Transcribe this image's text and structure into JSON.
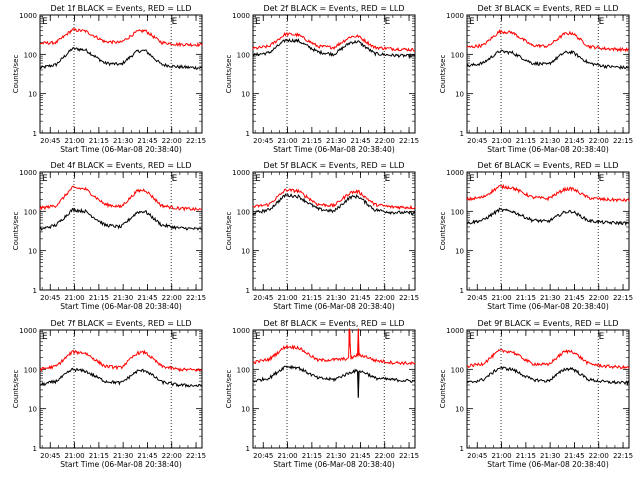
{
  "figure": {
    "start_time_label": "Start Time (06-Mar-08 20:38:40)",
    "ylabel": "Counts/sec",
    "x_ticks": [
      "20:45",
      "21:00",
      "21:15",
      "21:30",
      "21:45",
      "22:00",
      "22:15"
    ],
    "x_tick_minutes": [
      6.33,
      21.33,
      36.33,
      51.33,
      66.33,
      81.33,
      96.33
    ],
    "y_ticks": [
      "1",
      "10",
      "100",
      "1000"
    ],
    "y_tick_values": [
      1,
      10,
      100,
      1000
    ],
    "corner_marks": [
      "E",
      "E"
    ],
    "colors": {
      "events": "#000000",
      "lld": "#ff0000",
      "axes": "#000000",
      "vline": "#000000"
    }
  },
  "chart_data": [
    {
      "type": "line",
      "title": "Det 1f BLACK = Events, RED = LLD",
      "xlabel": "Start Time (06-Mar-08 20:38:40)",
      "ylabel": "Counts/sec",
      "xlim_minutes": [
        0,
        100
      ],
      "ylim": [
        1,
        1000
      ],
      "y_scale": "log",
      "vlines_minutes": [
        21,
        81
      ],
      "series": [
        {
          "name": "Events",
          "x": [
            0,
            10,
            20,
            28,
            40,
            50,
            60,
            65,
            75,
            85,
            100
          ],
          "y": [
            45,
            55,
            140,
            130,
            60,
            55,
            120,
            125,
            55,
            48,
            45
          ]
        },
        {
          "name": "LLD",
          "x": [
            0,
            10,
            20,
            28,
            40,
            50,
            60,
            65,
            75,
            85,
            100
          ],
          "y": [
            190,
            200,
            420,
            390,
            210,
            200,
            380,
            400,
            200,
            180,
            175
          ]
        }
      ]
    },
    {
      "type": "line",
      "title": "Det 2f BLACK = Events, RED = LLD",
      "xlabel": "Start Time (06-Mar-08 20:38:40)",
      "ylabel": "Counts/sec",
      "xlim_minutes": [
        0,
        100
      ],
      "ylim": [
        1,
        1000
      ],
      "y_scale": "log",
      "vlines_minutes": [
        21,
        81
      ],
      "series": [
        {
          "name": "Events",
          "x": [
            0,
            10,
            20,
            28,
            40,
            50,
            60,
            65,
            75,
            85,
            100
          ],
          "y": [
            95,
            110,
            230,
            220,
            115,
            100,
            200,
            210,
            105,
            95,
            90
          ]
        },
        {
          "name": "LLD",
          "x": [
            0,
            10,
            20,
            28,
            40,
            50,
            60,
            65,
            75,
            85,
            100
          ],
          "y": [
            140,
            160,
            330,
            310,
            160,
            150,
            280,
            290,
            150,
            140,
            130
          ]
        }
      ]
    },
    {
      "type": "line",
      "title": "Det 3f BLACK = Events, RED = LLD",
      "xlabel": "Start Time (06-Mar-08 20:38:40)",
      "ylabel": "Counts/sec",
      "xlim_minutes": [
        0,
        100
      ],
      "ylim": [
        1,
        1000
      ],
      "y_scale": "log",
      "vlines_minutes": [
        21,
        81
      ],
      "series": [
        {
          "name": "Events",
          "x": [
            0,
            10,
            20,
            28,
            40,
            50,
            60,
            65,
            75,
            85,
            100
          ],
          "y": [
            50,
            60,
            120,
            110,
            60,
            55,
            110,
            115,
            60,
            50,
            45
          ]
        },
        {
          "name": "LLD",
          "x": [
            0,
            10,
            20,
            28,
            40,
            50,
            60,
            65,
            75,
            85,
            100
          ],
          "y": [
            150,
            170,
            380,
            360,
            170,
            160,
            330,
            350,
            160,
            140,
            130
          ]
        }
      ]
    },
    {
      "type": "line",
      "title": "Det 4f BLACK = Events, RED = LLD",
      "xlabel": "Start Time (06-Mar-08 20:38:40)",
      "ylabel": "Counts/sec",
      "xlim_minutes": [
        0,
        100
      ],
      "ylim": [
        1,
        1000
      ],
      "y_scale": "log",
      "vlines_minutes": [
        21,
        81
      ],
      "series": [
        {
          "name": "Events",
          "x": [
            0,
            10,
            20,
            28,
            40,
            50,
            60,
            65,
            75,
            85,
            100
          ],
          "y": [
            35,
            45,
            110,
            100,
            45,
            40,
            95,
            100,
            45,
            38,
            35
          ]
        },
        {
          "name": "LLD",
          "x": [
            0,
            10,
            20,
            28,
            40,
            50,
            60,
            65,
            75,
            85,
            100
          ],
          "y": [
            120,
            140,
            400,
            370,
            150,
            130,
            330,
            350,
            140,
            120,
            110
          ]
        }
      ]
    },
    {
      "type": "line",
      "title": "Det 5f BLACK = Events, RED = LLD",
      "xlabel": "Start Time (06-Mar-08 20:38:40)",
      "ylabel": "Counts/sec",
      "xlim_minutes": [
        0,
        100
      ],
      "ylim": [
        1,
        1000
      ],
      "y_scale": "log",
      "vlines_minutes": [
        21,
        81
      ],
      "series": [
        {
          "name": "Events",
          "x": [
            0,
            10,
            20,
            28,
            40,
            50,
            60,
            65,
            75,
            85,
            100
          ],
          "y": [
            90,
            110,
            260,
            240,
            115,
            100,
            230,
            240,
            110,
            95,
            90
          ]
        },
        {
          "name": "LLD",
          "x": [
            0,
            10,
            20,
            28,
            40,
            50,
            60,
            65,
            75,
            85,
            100
          ],
          "y": [
            130,
            150,
            350,
            330,
            150,
            140,
            300,
            320,
            150,
            130,
            125
          ]
        }
      ]
    },
    {
      "type": "line",
      "title": "Det 6f BLACK = Events, RED = LLD",
      "xlabel": "Start Time (06-Mar-08 20:38:40)",
      "ylabel": "Counts/sec",
      "xlim_minutes": [
        0,
        100
      ],
      "ylim": [
        1,
        1000
      ],
      "y_scale": "log",
      "vlines_minutes": [
        21,
        81
      ],
      "series": [
        {
          "name": "Events",
          "x": [
            0,
            10,
            20,
            28,
            40,
            50,
            60,
            65,
            75,
            85,
            100
          ],
          "y": [
            50,
            60,
            110,
            100,
            60,
            55,
            95,
            100,
            58,
            52,
            50
          ]
        },
        {
          "name": "LLD",
          "x": [
            0,
            10,
            20,
            28,
            40,
            50,
            60,
            65,
            75,
            85,
            100
          ],
          "y": [
            200,
            230,
            430,
            400,
            230,
            210,
            360,
            380,
            220,
            200,
            190
          ]
        }
      ]
    },
    {
      "type": "line",
      "title": "Det 7f BLACK = Events, RED = LLD",
      "xlabel": "Start Time (06-Mar-08 20:38:40)",
      "ylabel": "Counts/sec",
      "xlim_minutes": [
        0,
        100
      ],
      "ylim": [
        1,
        1000
      ],
      "y_scale": "log",
      "vlines_minutes": [
        21,
        81
      ],
      "series": [
        {
          "name": "Events",
          "x": [
            0,
            10,
            20,
            28,
            40,
            50,
            60,
            65,
            75,
            85,
            100
          ],
          "y": [
            40,
            50,
            100,
            90,
            50,
            45,
            90,
            95,
            48,
            40,
            38
          ]
        },
        {
          "name": "LLD",
          "x": [
            0,
            10,
            20,
            28,
            40,
            50,
            60,
            65,
            75,
            85,
            100
          ],
          "y": [
            100,
            120,
            280,
            260,
            120,
            110,
            260,
            270,
            120,
            100,
            95
          ]
        }
      ]
    },
    {
      "type": "line",
      "title": "Det 8f BLACK = Events, RED = LLD",
      "xlabel": "Start Time (06-Mar-08 20:38:40)",
      "ylabel": "Counts/sec",
      "xlim_minutes": [
        0,
        100
      ],
      "ylim": [
        1,
        1000
      ],
      "y_scale": "log",
      "vlines_minutes": [
        21,
        81
      ],
      "series": [
        {
          "name": "Events",
          "x": [
            0,
            10,
            20,
            28,
            40,
            50,
            62,
            64.5,
            65,
            65.5,
            70,
            75,
            85,
            100
          ],
          "y": [
            50,
            60,
            120,
            110,
            60,
            55,
            90,
            90,
            20,
            90,
            80,
            60,
            55,
            50
          ]
        },
        {
          "name": "LLD",
          "x": [
            0,
            10,
            20,
            28,
            40,
            55,
            59,
            59.3,
            59.8,
            60.2,
            64.5,
            65,
            65.5,
            70,
            75,
            85,
            100
          ],
          "y": [
            150,
            180,
            380,
            360,
            170,
            180,
            190,
            1000,
            1000,
            190,
            230,
            1000,
            230,
            210,
            170,
            150,
            140
          ]
        }
      ]
    },
    {
      "type": "line",
      "title": "Det 9f BLACK = Events, RED = LLD",
      "xlabel": "Start Time (06-Mar-08 20:38:40)",
      "ylabel": "Counts/sec",
      "xlim_minutes": [
        0,
        100
      ],
      "ylim": [
        1,
        1000
      ],
      "y_scale": "log",
      "vlines_minutes": [
        21,
        81
      ],
      "series": [
        {
          "name": "Events",
          "x": [
            0,
            10,
            20,
            28,
            40,
            50,
            60,
            65,
            75,
            85,
            100
          ],
          "y": [
            45,
            55,
            110,
            100,
            55,
            50,
            100,
            105,
            55,
            48,
            45
          ]
        },
        {
          "name": "LLD",
          "x": [
            0,
            10,
            20,
            28,
            40,
            50,
            60,
            65,
            75,
            85,
            100
          ],
          "y": [
            120,
            140,
            300,
            280,
            140,
            130,
            280,
            290,
            140,
            120,
            110
          ]
        }
      ]
    }
  ]
}
